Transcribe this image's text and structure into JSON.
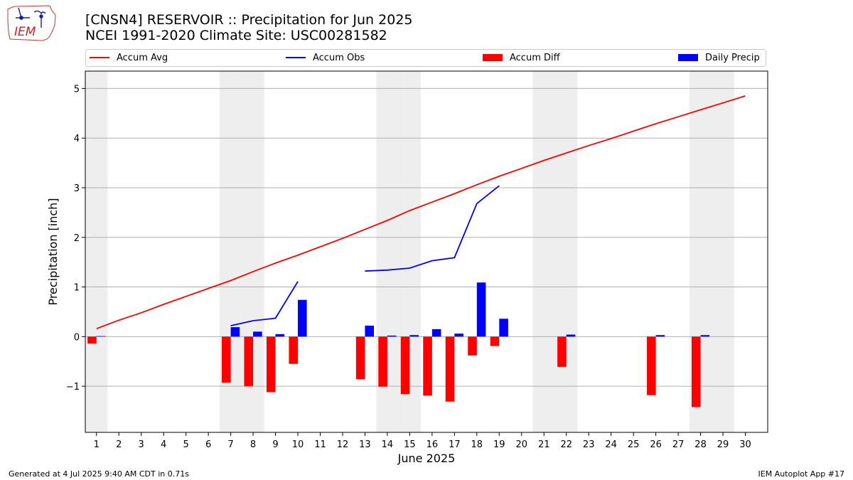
{
  "header": {
    "title_line1": "[CNSN4] RESERVOIR :: Precipitation for Jun 2025",
    "title_line2": "NCEI 1991-2020 Climate Site: USC00281582"
  },
  "logo": {
    "text": "IEM"
  },
  "legend": {
    "items": [
      {
        "label": "Accum Avg",
        "color": "#ff0000",
        "kind": "line"
      },
      {
        "label": "Accum Obs",
        "color": "#0000ff",
        "kind": "line"
      },
      {
        "label": "Accum Diff",
        "color": "#ff0000",
        "kind": "box"
      },
      {
        "label": "Daily Precip",
        "color": "#0000ff",
        "kind": "box"
      }
    ]
  },
  "footer": {
    "left": "Generated at 4 Jul 2025 9:40 AM CDT in 0.71s",
    "right": "IEM Autoplot App #17"
  },
  "chart_data": {
    "type": "bar",
    "title": "[CNSN4] RESERVOIR :: Precipitation for Jun 2025",
    "xlabel": "June 2025",
    "ylabel": "Precipitation [inch]",
    "ylim": [
      -1.93,
      5.35
    ],
    "xlim": [
      0.5,
      31.0
    ],
    "yticks": [
      -1,
      0,
      1,
      2,
      3,
      4,
      5
    ],
    "ytick_labels": [
      "−1",
      "0",
      "1",
      "2",
      "3",
      "4",
      "5"
    ],
    "x": [
      1,
      2,
      3,
      4,
      5,
      6,
      7,
      8,
      9,
      10,
      11,
      12,
      13,
      14,
      15,
      16,
      17,
      18,
      19,
      20,
      21,
      22,
      23,
      24,
      25,
      26,
      27,
      28,
      29,
      30
    ],
    "weekend_days": [
      1,
      7,
      8,
      14,
      15,
      21,
      22,
      28,
      29
    ],
    "grid": true,
    "series": [
      {
        "name": "Accum Avg",
        "type": "line",
        "color": "#ff0000",
        "values": [
          0.16,
          0.33,
          0.48,
          0.65,
          0.81,
          0.97,
          1.13,
          1.31,
          1.48,
          1.64,
          1.81,
          1.98,
          2.16,
          2.34,
          2.54,
          2.71,
          2.88,
          3.06,
          3.23,
          3.39,
          3.55,
          3.7,
          3.85,
          3.99,
          4.14,
          4.29,
          4.43,
          4.57,
          4.71,
          4.85
        ]
      },
      {
        "name": "Accum Obs",
        "type": "line",
        "color": "#0000ff",
        "values": [
          null,
          null,
          null,
          null,
          null,
          null,
          0.22,
          0.32,
          0.37,
          1.11,
          null,
          null,
          1.32,
          1.34,
          1.38,
          1.53,
          1.59,
          2.68,
          3.04,
          null,
          null,
          null,
          null,
          null,
          null,
          null,
          null,
          null,
          null,
          null
        ]
      },
      {
        "name": "Accum Diff",
        "type": "bar",
        "color": "#ff0000",
        "values": [
          -0.14,
          0,
          0,
          0,
          0,
          0,
          -0.93,
          -1.0,
          -1.12,
          -0.55,
          0,
          0,
          -0.86,
          -1.01,
          -1.16,
          -1.19,
          -1.31,
          -0.38,
          -0.19,
          0,
          0,
          -0.61,
          0,
          0,
          0,
          -1.18,
          0,
          -1.42,
          0,
          0
        ]
      },
      {
        "name": "Daily Precip",
        "type": "bar",
        "color": "#0000ff",
        "values": [
          0.01,
          0,
          0,
          0,
          0,
          0,
          0.19,
          0.1,
          0.05,
          0.74,
          0,
          0,
          0.22,
          0.02,
          0.03,
          0.15,
          0.06,
          1.09,
          0.36,
          0,
          0,
          0.04,
          0,
          0,
          0,
          0.03,
          0,
          0.03,
          0,
          0
        ]
      }
    ]
  }
}
